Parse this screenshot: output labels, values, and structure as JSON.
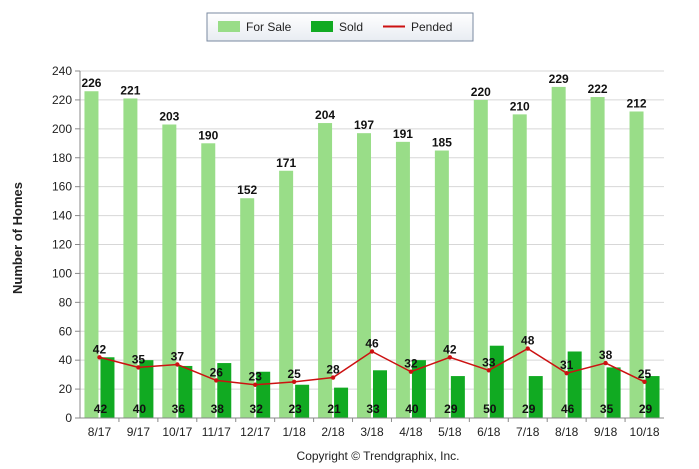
{
  "chart_data": {
    "type": "bar",
    "title": "",
    "xlabel": "",
    "ylabel": "Number of Homes",
    "ylim": [
      0,
      240
    ],
    "yticks": [
      0,
      20,
      40,
      60,
      80,
      100,
      120,
      140,
      160,
      180,
      200,
      220,
      240
    ],
    "grid": true,
    "legend_position": "top-center",
    "categories": [
      "8/17",
      "9/17",
      "10/17",
      "11/17",
      "12/17",
      "1/18",
      "2/18",
      "3/18",
      "4/18",
      "5/18",
      "6/18",
      "7/18",
      "8/18",
      "9/18",
      "10/18"
    ],
    "series": [
      {
        "name": "For Sale",
        "type": "bar",
        "color": "#99dd88",
        "values": [
          226,
          221,
          203,
          190,
          152,
          171,
          204,
          197,
          191,
          185,
          220,
          210,
          229,
          222,
          212
        ]
      },
      {
        "name": "Sold",
        "type": "bar",
        "color": "#11aa22",
        "values": [
          42,
          40,
          36,
          38,
          32,
          23,
          21,
          33,
          40,
          29,
          50,
          29,
          46,
          35,
          29
        ]
      },
      {
        "name": "Pended",
        "type": "line",
        "color": "#cc1111",
        "values": [
          42,
          35,
          37,
          26,
          23,
          25,
          28,
          46,
          32,
          42,
          33,
          48,
          31,
          38,
          25
        ]
      }
    ]
  },
  "copyright": "Copyright © Trendgraphix, Inc."
}
